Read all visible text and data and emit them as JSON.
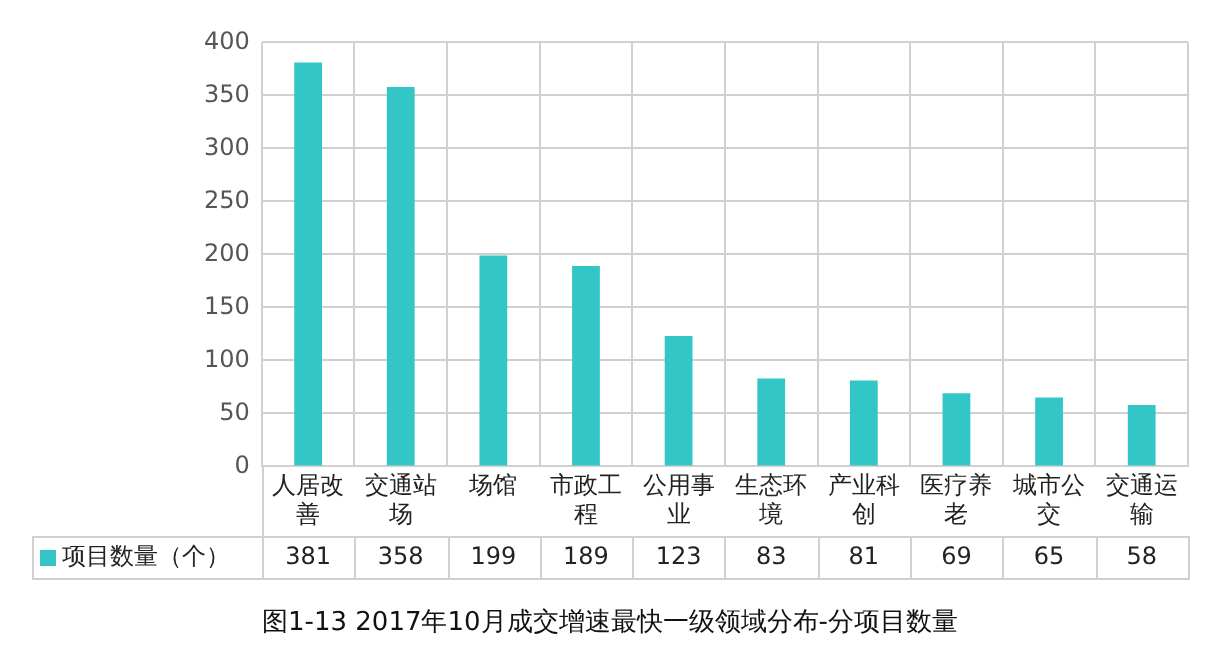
{
  "chart_data": {
    "type": "bar",
    "title": "图1-13 2017年10月成交增速最快一级领域分布-分项目数量",
    "categories": [
      "人居改善",
      "交通站场",
      "场馆",
      "市政工程",
      "公用事业",
      "生态环境",
      "产业科创",
      "医疗养老",
      "城市公交",
      "交通运输"
    ],
    "series": [
      {
        "name": "项目数量（个）",
        "color": "#33c6c6",
        "values": [
          381,
          358,
          199,
          189,
          123,
          83,
          81,
          69,
          65,
          58
        ]
      }
    ],
    "ylim": [
      0,
      400
    ],
    "yticks": [
      0,
      50,
      100,
      150,
      200,
      250,
      300,
      350,
      400
    ],
    "grid": true,
    "legend": "bottom",
    "data_labels": true
  }
}
